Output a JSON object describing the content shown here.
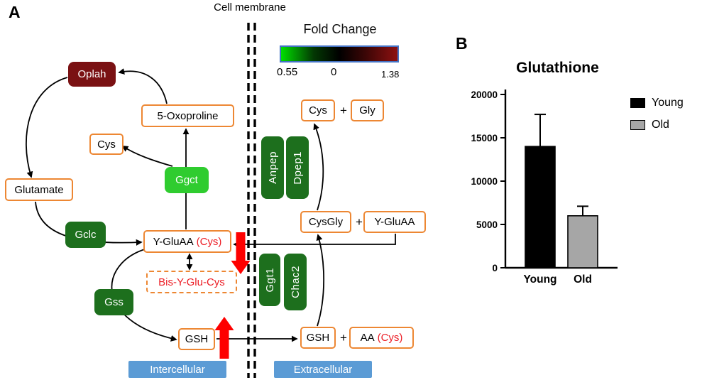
{
  "panel_a": {
    "label": "A",
    "cell_membrane_label": "Cell membrane",
    "fold_change_legend": {
      "title": "Fold Change",
      "min": "0.55",
      "mid": "0",
      "max": "1.38",
      "gradient": {
        "left": "#00DF00",
        "mid": "#000000",
        "right": "#8E1111"
      },
      "border_color": "#4472C4"
    },
    "regions": {
      "intracellular": "Intercellular",
      "extracellular": "Extracellular"
    },
    "nodes": {
      "oplah": "Oplah",
      "oxoproline": "5-Oxoproline",
      "cys_in": "Cys",
      "ggct": "Ggct",
      "glutamate": "Glutamate",
      "gclc": "Gclc",
      "ygluaa": "Y-GluAA",
      "ygluaa_cys": "(Cys)",
      "bis_y_glu_cys": "Bis-Y-Glu-Cys",
      "gss": "Gss",
      "gsh_in": "GSH",
      "cys_out": "Cys",
      "gly": "Gly",
      "anpep": "Anpep",
      "dpep1": "Dpep1",
      "cysgly": "CysGly",
      "ygluaa_out": "Y-GluAA",
      "ggt1": "Ggt1",
      "chac2": "Chac2",
      "gsh_out": "GSH",
      "aa": "AA",
      "aa_cys": "(Cys)",
      "plus": "+"
    },
    "colors": {
      "orange_border": "#ED8733",
      "dark_red": "#7A1113",
      "bright_green": "#2FCC2F",
      "dark_green": "#1D6F1D",
      "blue_label": "#5B9BD5",
      "red_text": "#EC1C24",
      "red_arrow": "#FE0000"
    }
  },
  "panel_b": {
    "label": "B"
  },
  "chart_data": {
    "type": "bar",
    "title": "Glutathione",
    "categories": [
      "Young",
      "Old"
    ],
    "values": [
      14000,
      6000
    ],
    "errors": [
      3700,
      1100
    ],
    "bar_colors": [
      "#000000",
      "#A6A6A6"
    ],
    "bar_border": "#000000",
    "ylim": [
      0,
      20000
    ],
    "yticks": [
      0,
      5000,
      10000,
      15000,
      20000
    ],
    "ylabel": "",
    "xlabel": "",
    "grid": false,
    "legend_position": "right",
    "legend": [
      {
        "label": "Young",
        "color": "#000000"
      },
      {
        "label": "Old",
        "color": "#A6A6A6"
      }
    ]
  }
}
